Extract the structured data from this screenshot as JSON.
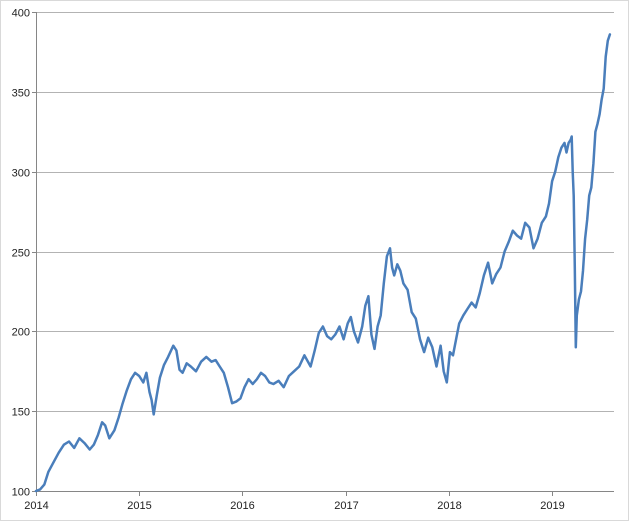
{
  "chart_data": {
    "type": "line",
    "title": "",
    "xlabel": "",
    "ylabel": "",
    "xlim": [
      2014,
      2019.6
    ],
    "ylim": [
      100,
      400
    ],
    "x_ticks": [
      "2014",
      "2015",
      "2016",
      "2017",
      "2018",
      "2019"
    ],
    "x_tick_values": [
      2014,
      2015,
      2016,
      2017,
      2018,
      2019
    ],
    "y_ticks": [
      "100",
      "150",
      "200",
      "250",
      "300",
      "350",
      "400"
    ],
    "y_tick_values": [
      100,
      150,
      200,
      250,
      300,
      350,
      400
    ],
    "grid": "horizontal",
    "legend": "none",
    "line_color": "#4a7ebb",
    "grid_color": "#b3b3b3",
    "axis_color": "#868686",
    "series": [
      {
        "x": [
          2014.0,
          2014.04,
          2014.08,
          2014.12,
          2014.17,
          2014.22,
          2014.27,
          2014.32,
          2014.37,
          2014.42,
          2014.47,
          2014.52,
          2014.56,
          2014.6,
          2014.64,
          2014.67,
          2014.71,
          2014.76,
          2014.8,
          2014.84,
          2014.88,
          2014.92,
          2014.96,
          2015.0,
          2015.04,
          2015.07,
          2015.1,
          2015.12,
          2015.14,
          2015.17,
          2015.2,
          2015.24,
          2015.28,
          2015.33,
          2015.36,
          2015.39,
          2015.42,
          2015.46,
          2015.5,
          2015.55,
          2015.6,
          2015.65,
          2015.7,
          2015.74,
          2015.78,
          2015.82,
          2015.86,
          2015.9,
          2015.94,
          2015.98,
          2016.02,
          2016.06,
          2016.1,
          2016.14,
          2016.18,
          2016.22,
          2016.26,
          2016.3,
          2016.35,
          2016.4,
          2016.45,
          2016.5,
          2016.55,
          2016.6,
          2016.66,
          2016.7,
          2016.74,
          2016.78,
          2016.82,
          2016.86,
          2016.9,
          2016.94,
          2016.98,
          2017.02,
          2017.05,
          2017.08,
          2017.12,
          2017.16,
          2017.19,
          2017.22,
          2017.25,
          2017.28,
          2017.31,
          2017.34,
          2017.37,
          2017.4,
          2017.43,
          2017.45,
          2017.47,
          2017.5,
          2017.53,
          2017.56,
          2017.6,
          2017.64,
          2017.68,
          2017.72,
          2017.76,
          2017.8,
          2017.84,
          2017.88,
          2017.92,
          2017.95,
          2017.98,
          2018.01,
          2018.04,
          2018.07,
          2018.1,
          2018.14,
          2018.18,
          2018.22,
          2018.26,
          2018.3,
          2018.34,
          2018.38,
          2018.42,
          2018.46,
          2018.5,
          2018.54,
          2018.58,
          2018.62,
          2018.66,
          2018.7,
          2018.74,
          2018.78,
          2018.82,
          2018.86,
          2018.9,
          2018.94,
          2018.97,
          2019.0,
          2019.03,
          2019.06,
          2019.09,
          2019.12,
          2019.14,
          2019.16,
          2019.18,
          2019.19,
          2019.2,
          2019.21,
          2019.22,
          2019.23,
          2019.24,
          2019.26,
          2019.28,
          2019.3,
          2019.32,
          2019.34,
          2019.36,
          2019.38,
          2019.4,
          2019.42,
          2019.44,
          2019.46,
          2019.48,
          2019.5,
          2019.52,
          2019.54,
          2019.56
        ],
        "values": [
          100,
          101,
          104,
          112,
          118,
          124,
          129,
          131,
          127,
          133,
          130,
          126,
          129,
          135,
          143,
          141,
          133,
          138,
          146,
          155,
          163,
          170,
          174,
          172,
          168,
          174,
          162,
          157,
          148,
          160,
          171,
          179,
          184,
          191,
          188,
          176,
          174,
          180,
          178,
          175,
          181,
          184,
          181,
          182,
          178,
          174,
          165,
          155,
          156,
          158,
          165,
          170,
          167,
          170,
          174,
          172,
          168,
          167,
          169,
          165,
          172,
          175,
          178,
          185,
          178,
          188,
          199,
          203,
          197,
          195,
          198,
          203,
          195,
          205,
          209,
          200,
          193,
          203,
          216,
          222,
          198,
          189,
          203,
          210,
          230,
          247,
          252,
          240,
          235,
          242,
          238,
          230,
          226,
          212,
          208,
          195,
          187,
          196,
          190,
          178,
          191,
          175,
          168,
          187,
          185,
          195,
          205,
          210,
          214,
          218,
          215,
          224,
          235,
          243,
          230,
          236,
          240,
          250,
          256,
          263,
          260,
          258,
          268,
          265,
          252,
          258,
          268,
          272,
          280,
          294,
          300,
          309,
          315,
          318,
          312,
          318,
          320,
          322,
          300,
          285,
          240,
          190,
          210,
          220,
          225,
          238,
          258,
          270,
          285,
          290,
          305,
          325,
          330,
          336,
          345,
          352,
          372,
          382,
          386
        ]
      }
    ]
  }
}
